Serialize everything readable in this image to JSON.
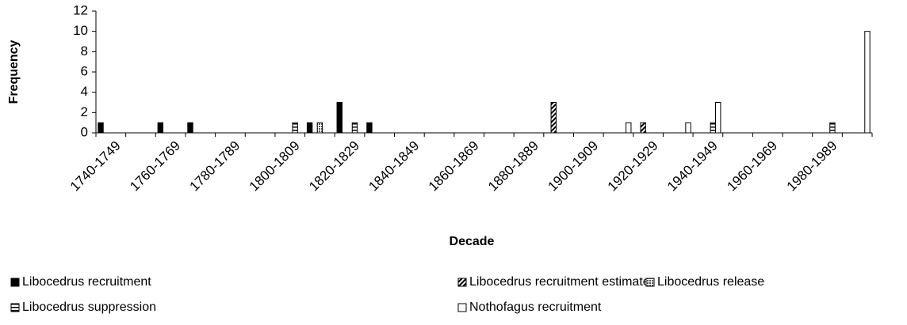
{
  "chart_data": {
    "type": "bar",
    "x_label": "Decade",
    "y_label": "Frequency",
    "categories": [
      "1740-1749",
      null,
      "1760-1769",
      null,
      "1780-1789",
      null,
      "1800-1809",
      null,
      "1820-1829",
      null,
      "1840-1849",
      null,
      "1860-1869",
      null,
      "1880-1889",
      null,
      "1900-1909",
      null,
      "1920-1929",
      null,
      "1940-1949",
      null,
      "1960-1969",
      null,
      "1980-1989",
      null
    ],
    "series": [
      {
        "name": "Libocedrus recruitment",
        "color": "#000000",
        "pattern": "solid",
        "values": [
          1,
          0,
          1,
          1,
          0,
          0,
          0,
          1,
          3,
          1,
          0,
          0,
          0,
          0,
          0,
          0,
          0,
          0,
          0,
          0,
          0,
          0,
          0,
          0,
          0,
          0
        ]
      },
      {
        "name": "Libocedrus recruitment estimate",
        "color": "#000000",
        "pattern": "diagonal",
        "values": [
          0,
          0,
          0,
          0,
          0,
          0,
          0,
          0,
          0,
          0,
          0,
          0,
          0,
          0,
          0,
          3,
          0,
          0,
          1,
          0,
          0,
          0,
          0,
          0,
          0,
          0
        ]
      },
      {
        "name": "Libocedrus release",
        "color": "#000000",
        "pattern": "cross",
        "values": [
          0,
          0,
          0,
          0,
          0,
          0,
          0,
          1,
          0,
          0,
          0,
          0,
          0,
          0,
          0,
          0,
          0,
          0,
          0,
          0,
          0,
          0,
          0,
          0,
          0,
          0
        ]
      },
      {
        "name": "Libocedrus suppression",
        "color": "#000000",
        "pattern": "horizontal",
        "values": [
          0,
          0,
          0,
          0,
          0,
          0,
          1,
          0,
          1,
          0,
          0,
          0,
          0,
          0,
          0,
          0,
          0,
          0,
          0,
          0,
          1,
          0,
          0,
          0,
          1,
          0
        ]
      },
      {
        "name": "Nothofagus recruitment",
        "color": "#ffffff",
        "pattern": "solid",
        "values": [
          0,
          0,
          0,
          0,
          0,
          0,
          0,
          0,
          0,
          0,
          0,
          0,
          0,
          0,
          0,
          0,
          0,
          1,
          0,
          1,
          3,
          0,
          0,
          0,
          0,
          10
        ]
      }
    ],
    "ylim": [
      0,
      12
    ],
    "yticks": [
      0,
      2,
      4,
      6,
      8,
      10,
      12
    ],
    "grid": false
  }
}
